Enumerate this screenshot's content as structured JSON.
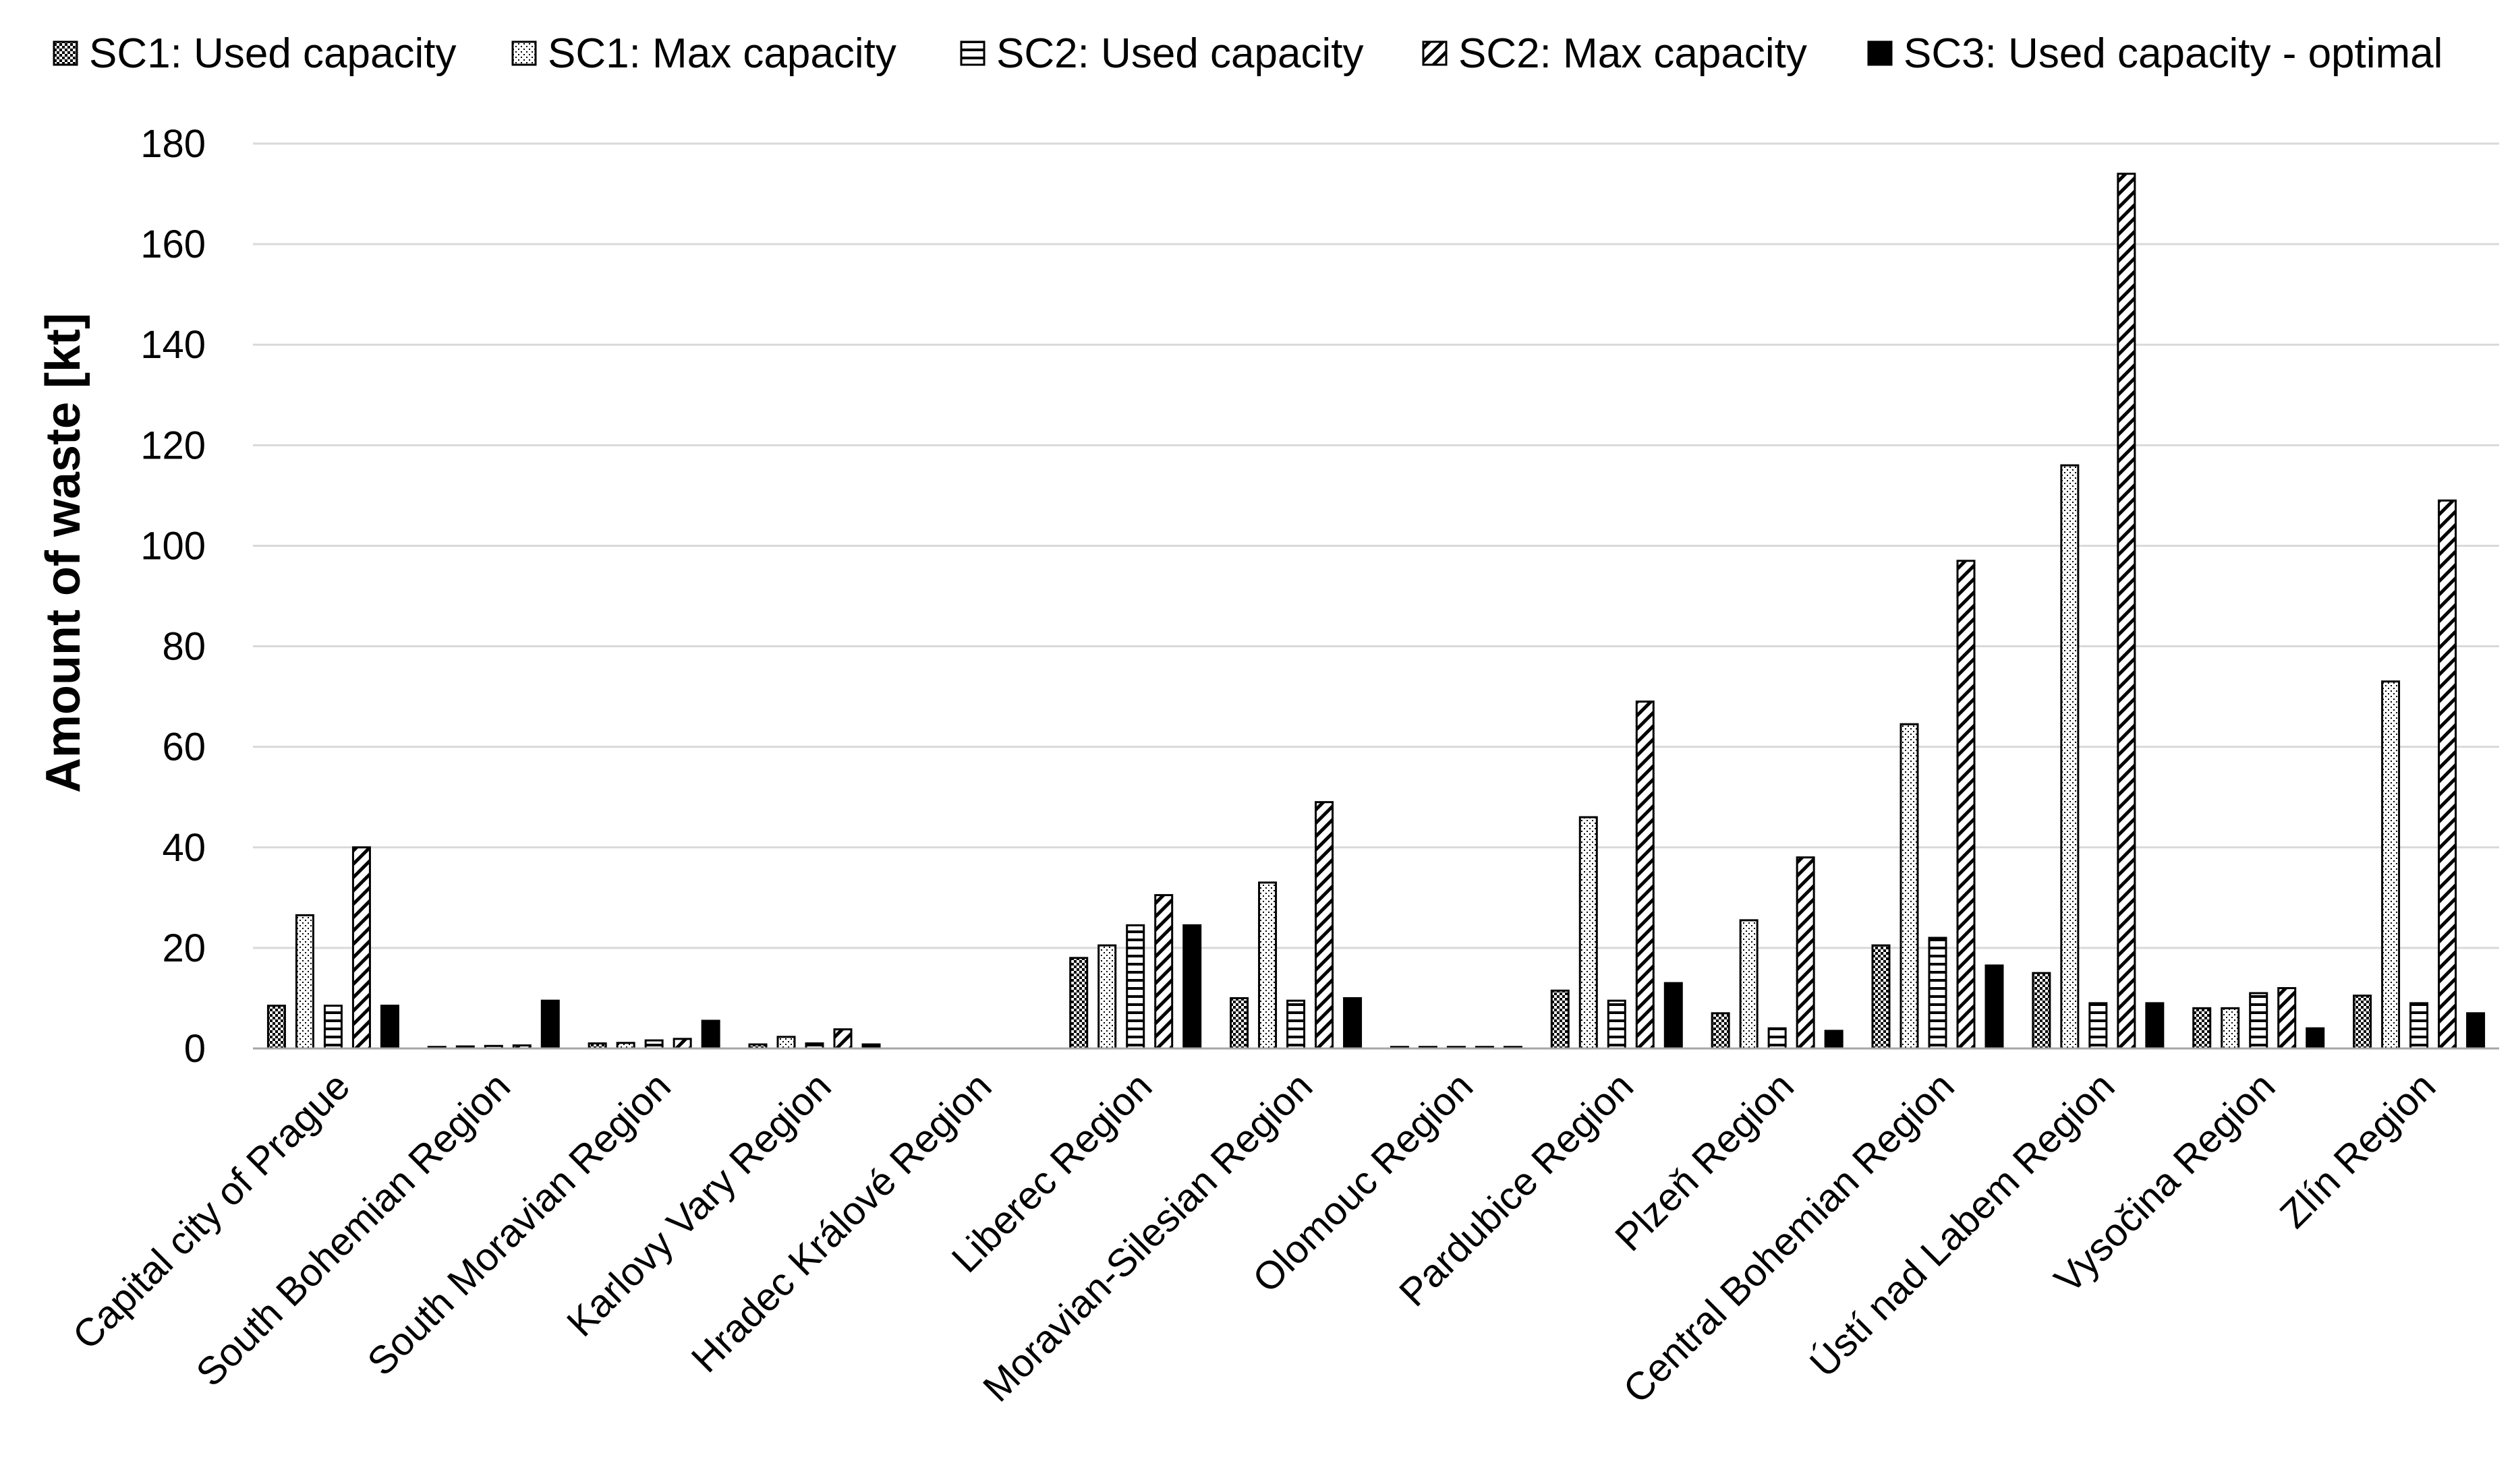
{
  "chart_data": {
    "type": "bar",
    "title": "",
    "xlabel": "",
    "ylabel": "Amount of waste [kt]",
    "ylim": [
      0,
      180
    ],
    "yticks": [
      0,
      20,
      40,
      60,
      80,
      100,
      120,
      140,
      160,
      180
    ],
    "grid": true,
    "legend_position": "top",
    "categories": [
      "Capital city of Prague",
      "South Bohemian Region",
      "South Moravian Region",
      "Karlovy Vary Region",
      "Hradec Králové Region",
      "Liberec Region",
      "Moravian-Silesian Region",
      "Olomouc Region",
      "Pardubice Region",
      "Plzeň Region",
      "Central Bohemian Region",
      "Ústí nad Labem Region",
      "Vysočina Region",
      "Zlín Region"
    ],
    "series": [
      {
        "name": "SC1: Used capacity",
        "pattern": "checker",
        "values": [
          8.5,
          0.3,
          1.0,
          0.8,
          0,
          18,
          10,
          0.3,
          11.5,
          7,
          20.5,
          15,
          8,
          10.5
        ]
      },
      {
        "name": "SC1: Max capacity",
        "pattern": "dots",
        "values": [
          26.5,
          0.4,
          1.1,
          2.3,
          0,
          20.5,
          33,
          0.3,
          46,
          25.5,
          64.5,
          116,
          8,
          73
        ]
      },
      {
        "name": "SC2: Used capacity",
        "pattern": "hlines",
        "values": [
          8.5,
          0.5,
          1.6,
          1.0,
          0,
          24.5,
          9.5,
          0.3,
          9.5,
          4,
          22,
          9,
          11,
          9
        ]
      },
      {
        "name": "SC2: Max capacity",
        "pattern": "diag",
        "values": [
          40,
          0.6,
          1.9,
          3.8,
          0,
          30.5,
          49,
          0.3,
          69,
          38,
          97,
          174,
          12,
          109
        ]
      },
      {
        "name": "SC3: Used capacity - optimal",
        "pattern": "solid",
        "values": [
          8.5,
          9.5,
          5.5,
          0.8,
          0,
          24.5,
          10,
          0.3,
          13,
          3.5,
          16.5,
          9,
          4,
          7
        ]
      }
    ],
    "colors": {
      "bar_stroke": "#000000",
      "solid_fill": "#000000",
      "grid": "#d9d9d9",
      "axis": "#a6a6a6"
    }
  }
}
